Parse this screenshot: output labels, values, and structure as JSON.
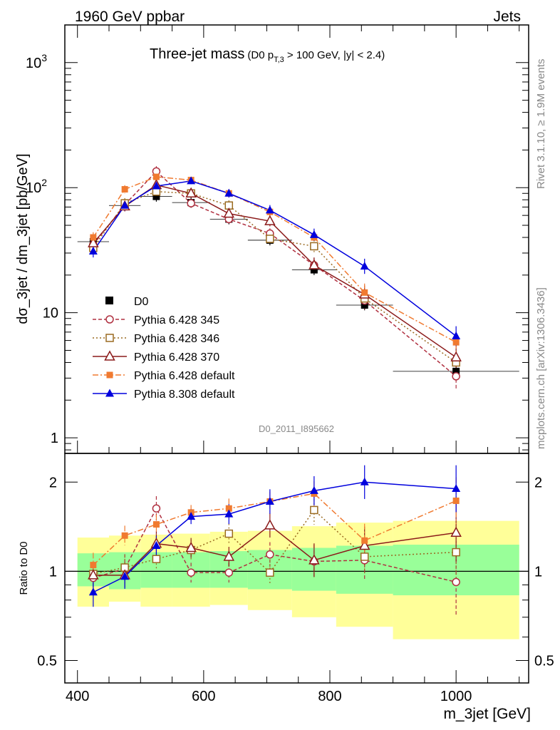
{
  "header": {
    "left": "1960 GeV ppbar",
    "right": "Jets",
    "side_top": "Rivet 3.1.10, ≥ 1.9M events",
    "side_bottom": "mcplots.cern.ch [arXiv:1306.3436]",
    "analysis_id": "D0_2011_I895662"
  },
  "chart_data": [
    {
      "type": "line",
      "panel": "main",
      "title": "Three-jet mass",
      "subtitle": "(D0 p",
      "subtitle_sub": "T,3",
      "subtitle_rest": " > 100 GeV, |y| < 2.4)",
      "xlabel": "m_3jet [GeV]",
      "ylabel": "dσ_3jet / dm_3jet [pb/GeV]",
      "xlim": [
        380,
        1115
      ],
      "ylim": [
        0.75,
        2000
      ],
      "yscale": "log",
      "xticks": [
        400,
        600,
        800,
        1000
      ],
      "yticks": [
        {
          "value": 1,
          "label": "1"
        },
        {
          "value": 10,
          "label": "10"
        },
        {
          "value": 100,
          "label": "10",
          "exp": "2"
        },
        {
          "value": 1000,
          "label": "10",
          "exp": "3"
        }
      ],
      "legend_position": "lower-left",
      "x": [
        425,
        475,
        525,
        580,
        640,
        705,
        775,
        855,
        1000
      ],
      "data": {
        "name": "D0",
        "color": "#000000",
        "values": [
          37,
          72,
          85,
          76,
          56,
          38,
          22,
          11.5,
          3.4
        ],
        "bins": [
          400,
          450,
          500,
          550,
          610,
          670,
          740,
          810,
          900,
          1100
        ]
      },
      "series": [
        {
          "name": "Pythia 6.428 345",
          "color": "#b03040",
          "dash": "5,3",
          "marker": "circle-open",
          "values": [
            35,
            73,
            135,
            75,
            56,
            43,
            24,
            12.5,
            3.1
          ],
          "err": [
            0.1,
            0.1,
            0.1,
            0.08,
            0.1,
            0.1,
            0.15,
            0.18,
            0.3
          ]
        },
        {
          "name": "Pythia 6.428 346",
          "color": "#9a6a20",
          "dash": "2,3",
          "marker": "square-open",
          "values": [
            33,
            75,
            93,
            90,
            72,
            39,
            34,
            13,
            4.0
          ],
          "err": [
            0.1,
            0.1,
            0.1,
            0.08,
            0.1,
            0.1,
            0.12,
            0.15,
            0.25
          ]
        },
        {
          "name": "Pythia 6.428 370",
          "color": "#8b1a1a",
          "dash": "",
          "marker": "triangle-open",
          "values": [
            36,
            71,
            105,
            90,
            62,
            54,
            24,
            14,
            4.4
          ],
          "err": [
            0.1,
            0.1,
            0.1,
            0.08,
            0.1,
            0.1,
            0.15,
            0.18,
            0.25
          ]
        },
        {
          "name": "Pythia 6.428 default",
          "color": "#f07a30",
          "dash": "8,3,2,3",
          "marker": "square-filled",
          "values": [
            40,
            97,
            122,
            115,
            90,
            64,
            40,
            14.5,
            5.8
          ],
          "err": [
            0.1,
            0.08,
            0.08,
            0.06,
            0.08,
            0.1,
            0.12,
            0.18,
            0.22
          ]
        },
        {
          "name": "Pythia 8.308 default",
          "color": "#0000dd",
          "dash": "",
          "marker": "triangle-filled",
          "values": [
            31,
            72,
            103,
            113,
            90,
            66,
            42,
            23.5,
            6.5
          ],
          "err": [
            0.12,
            0.1,
            0.08,
            0.06,
            0.08,
            0.1,
            0.12,
            0.15,
            0.2
          ]
        }
      ]
    },
    {
      "type": "line",
      "panel": "ratio",
      "ylabel": "Ratio to D0",
      "yscale": "log",
      "xlim": [
        380,
        1115
      ],
      "ylim": [
        0.42,
        2.5
      ],
      "yticks": [
        {
          "value": 0.5,
          "label": "0.5"
        },
        {
          "value": 1,
          "label": "1"
        },
        {
          "value": 2,
          "label": "2"
        }
      ],
      "bands": {
        "bins": [
          400,
          450,
          500,
          550,
          610,
          670,
          740,
          810,
          900,
          1100
        ],
        "stat": {
          "color": "#99ff99",
          "lo": [
            0.89,
            0.87,
            0.88,
            0.88,
            0.88,
            0.87,
            0.86,
            0.84,
            0.83
          ],
          "hi": [
            1.15,
            1.16,
            1.16,
            1.16,
            1.17,
            1.18,
            1.2,
            1.22,
            1.23
          ]
        },
        "total": {
          "color": "#ffff99",
          "lo": [
            0.76,
            0.79,
            0.76,
            0.76,
            0.77,
            0.74,
            0.7,
            0.65,
            0.59
          ],
          "hi": [
            1.3,
            1.32,
            1.33,
            1.34,
            1.36,
            1.37,
            1.42,
            1.46,
            1.48
          ]
        }
      },
      "x": [
        425,
        475,
        525,
        580,
        640,
        705,
        775,
        855,
        1000
      ],
      "series": [
        {
          "name": "Pythia 6.428 345",
          "values": [
            0.95,
            1.02,
            1.63,
            0.99,
            0.99,
            1.14,
            1.08,
            1.09,
            0.92
          ],
          "err": [
            0.1,
            0.12,
            0.1,
            0.08,
            0.08,
            0.1,
            0.14,
            0.16,
            0.3
          ]
        },
        {
          "name": "Pythia 6.428 346",
          "values": [
            0.98,
            1.03,
            1.1,
            1.18,
            1.34,
            0.99,
            1.61,
            1.12,
            1.16
          ],
          "err": [
            0.1,
            0.1,
            0.08,
            0.08,
            0.08,
            0.1,
            0.12,
            0.14,
            0.25
          ]
        },
        {
          "name": "Pythia 6.428 370",
          "values": [
            0.97,
            0.97,
            1.24,
            1.2,
            1.12,
            1.43,
            1.09,
            1.22,
            1.35
          ],
          "err": [
            0.1,
            0.1,
            0.1,
            0.08,
            0.08,
            0.1,
            0.14,
            0.16,
            0.25
          ]
        },
        {
          "name": "Pythia 6.428 default",
          "values": [
            1.05,
            1.32,
            1.44,
            1.58,
            1.63,
            1.72,
            1.83,
            1.27,
            1.73
          ],
          "err": [
            0.1,
            0.08,
            0.08,
            0.06,
            0.08,
            0.08,
            0.1,
            0.14,
            0.2
          ]
        },
        {
          "name": "Pythia 8.308 default",
          "values": [
            0.85,
            0.96,
            1.22,
            1.53,
            1.56,
            1.72,
            1.87,
            2.0,
            1.9
          ],
          "err": [
            0.12,
            0.1,
            0.08,
            0.06,
            0.08,
            0.1,
            0.12,
            0.14,
            0.2
          ]
        }
      ]
    }
  ]
}
